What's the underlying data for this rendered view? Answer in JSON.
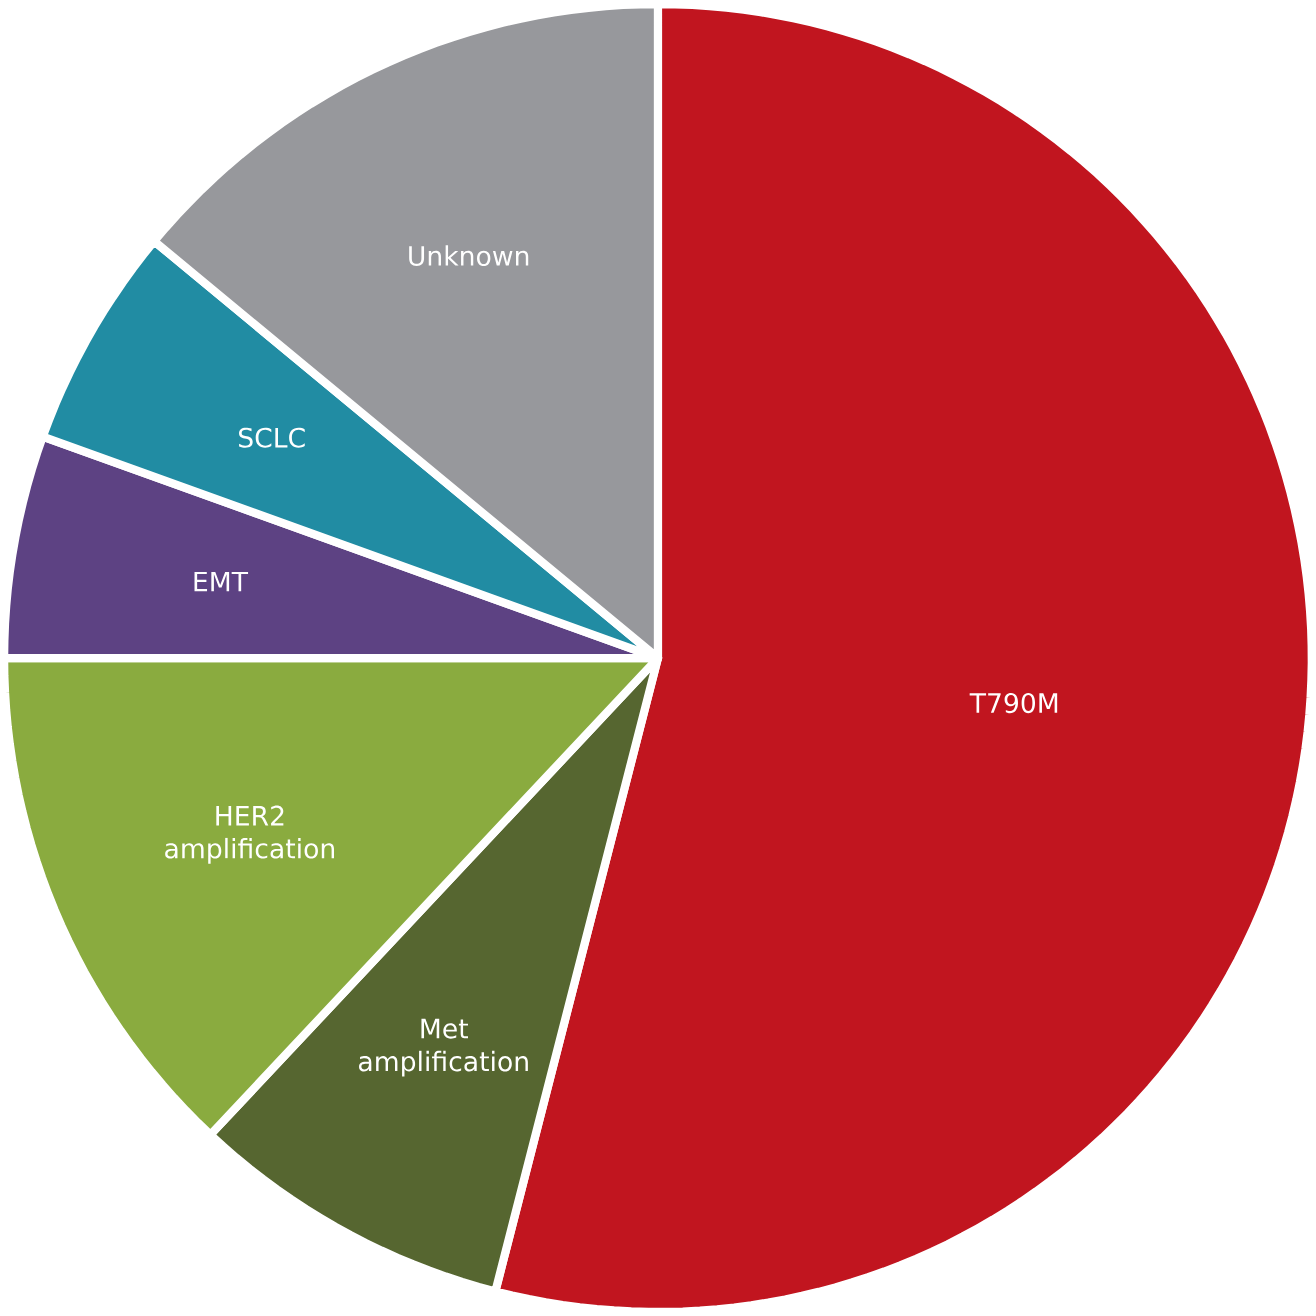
{
  "chart_data": {
    "type": "pie",
    "categories": [
      "T790M",
      "Met amplification",
      "HER2 amplification",
      "EMT",
      "SCLC",
      "Unknown"
    ],
    "values": [
      54,
      8,
      13,
      5.5,
      5.5,
      14
    ],
    "colors": [
      "#c1151f",
      "#566630",
      "#8aab3f",
      "#5d4283",
      "#218ca3",
      "#97989c"
    ]
  }
}
